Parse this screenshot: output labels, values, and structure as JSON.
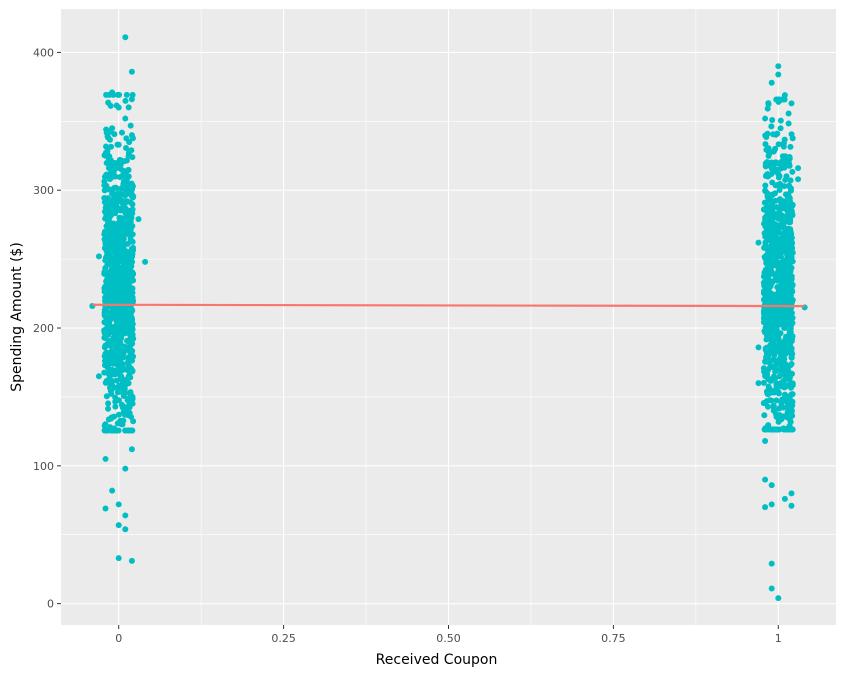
{
  "chart_data": {
    "type": "scatter",
    "title": "",
    "xlabel": "Received Coupon",
    "ylabel": "Spending Amount ($)",
    "xlim": [
      -0.0875,
      1.0875
    ],
    "ylim": [
      -15.5,
      431.5
    ],
    "grid": true,
    "x_ticks": [
      0,
      0.25,
      0.5,
      0.75,
      1
    ],
    "x_tick_labels": [
      "0",
      "0.25",
      "0.50",
      "0.75",
      "1"
    ],
    "y_ticks": [
      0,
      100,
      200,
      300,
      400
    ],
    "y_tick_labels": [
      "0",
      "100",
      "200",
      "300",
      "400"
    ],
    "point_color": "#00bfc4",
    "line_color": "#f8766d",
    "panel_color": "#ebebeb",
    "trend_line": {
      "x": [
        -0.04,
        1.04
      ],
      "y": [
        216.9,
        215.9
      ]
    },
    "groups": [
      {
        "x_center": 0,
        "jitter": 0.04,
        "n": 1000,
        "mean": 230,
        "sd": 58,
        "points": [
          [
            0.01,
            411
          ],
          [
            0.02,
            386
          ],
          [
            -0.01,
            371
          ],
          [
            0.02,
            366
          ],
          [
            0.0,
            360
          ],
          [
            0.01,
            352
          ],
          [
            -0.01,
            345
          ],
          [
            0.02,
            340
          ],
          [
            0.0,
            333
          ],
          [
            -0.02,
            325
          ],
          [
            0.03,
            279
          ],
          [
            0.04,
            248
          ],
          [
            -0.03,
            252
          ],
          [
            -0.04,
            216
          ],
          [
            -0.03,
            165
          ],
          [
            0.02,
            112
          ],
          [
            -0.02,
            105
          ],
          [
            0.01,
            98
          ],
          [
            -0.01,
            82
          ],
          [
            0.0,
            72
          ],
          [
            -0.02,
            69
          ],
          [
            0.01,
            64
          ],
          [
            0.0,
            57
          ],
          [
            0.01,
            54
          ],
          [
            0.0,
            33
          ],
          [
            0.02,
            31
          ]
        ]
      },
      {
        "x_center": 1,
        "jitter": 0.04,
        "n": 1000,
        "mean": 229,
        "sd": 57,
        "points": [
          [
            1.0,
            390
          ],
          [
            1.0,
            384
          ],
          [
            0.99,
            378
          ],
          [
            1.01,
            369
          ],
          [
            1.02,
            363
          ],
          [
            0.98,
            352
          ],
          [
            1.03,
            316
          ],
          [
            1.03,
            308
          ],
          [
            0.97,
            262
          ],
          [
            1.04,
            215
          ],
          [
            0.97,
            186
          ],
          [
            0.97,
            160
          ],
          [
            0.98,
            118
          ],
          [
            0.98,
            90
          ],
          [
            0.99,
            86
          ],
          [
            1.02,
            80
          ],
          [
            1.01,
            76
          ],
          [
            0.99,
            72
          ],
          [
            1.02,
            71
          ],
          [
            0.98,
            70
          ],
          [
            0.99,
            29
          ],
          [
            0.99,
            11
          ],
          [
            1.0,
            4
          ]
        ]
      }
    ]
  }
}
